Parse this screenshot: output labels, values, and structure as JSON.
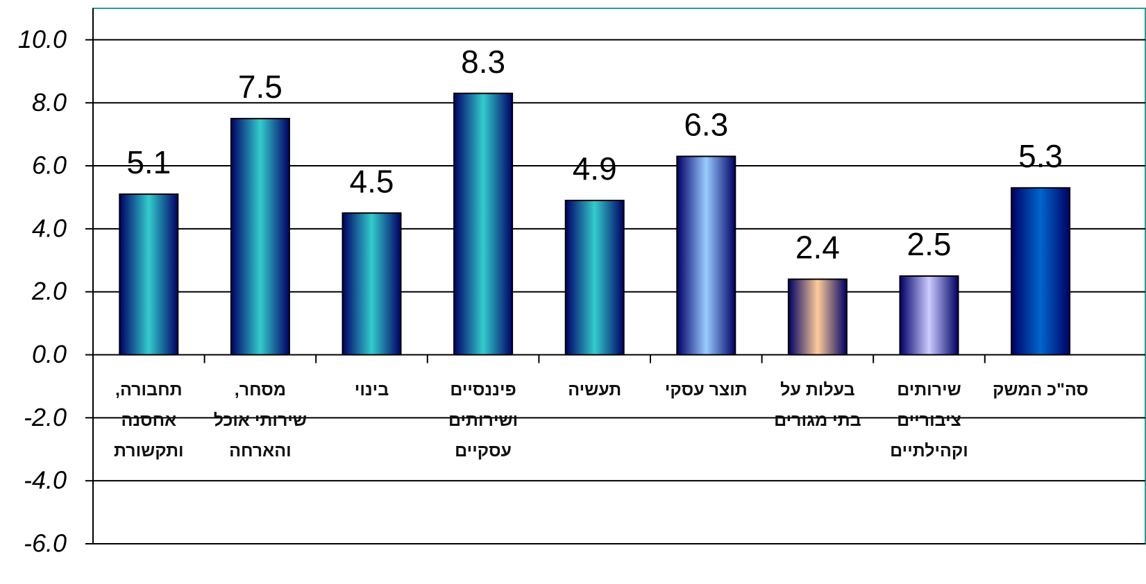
{
  "chart_data": {
    "type": "bar",
    "categories": [
      "תחבורה, אחסנה ותקשורת",
      "מסחר, שירותי אוכל והארחה",
      "בינוי",
      "פיננסיים ושירותים עסקיים",
      "תעשיה",
      "תוצר עסקי",
      "בעלות על בתי מגורים",
      "שירותים ציבוריים וקהילתיים",
      "סה\"כ המשק"
    ],
    "values": [
      5.1,
      7.5,
      4.5,
      8.3,
      4.9,
      6.3,
      2.4,
      2.5,
      5.3
    ],
    "colors": [
      "#33cccc",
      "#33cccc",
      "#33cccc",
      "#33cccc",
      "#33cccc",
      "#99ccff",
      "#ffcc99",
      "#ccccff",
      "#0066cc"
    ],
    "ylim": [
      -6,
      11
    ],
    "yticks": [
      {
        "value": -6,
        "label": "-6.0"
      },
      {
        "value": -4,
        "label": "-4.0"
      },
      {
        "value": -2,
        "label": "-2.0"
      },
      {
        "value": 0,
        "label": "0.0"
      },
      {
        "value": 2,
        "label": "2.0"
      },
      {
        "value": 4,
        "label": "4.0"
      },
      {
        "value": 6,
        "label": "6.0"
      },
      {
        "value": 8,
        "label": "8.0"
      },
      {
        "value": 10,
        "label": "10.0"
      }
    ],
    "grid": true
  }
}
